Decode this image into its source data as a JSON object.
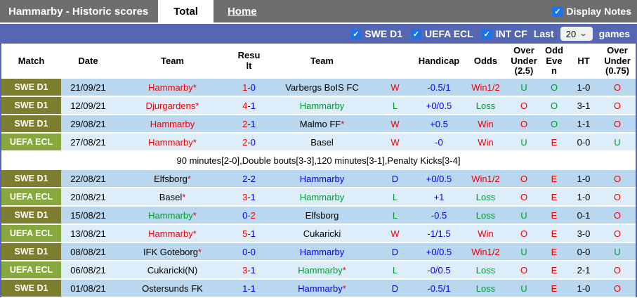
{
  "header": {
    "title": "Hammarby - Historic scores",
    "tabs": [
      {
        "label": "Total",
        "active": true
      },
      {
        "label": "Home",
        "active": false
      }
    ],
    "display_notes_label": "Display Notes",
    "display_notes_checked": true
  },
  "filter_bar": {
    "leagues": [
      {
        "label": "SWE D1",
        "checked": true
      },
      {
        "label": "UEFA ECL",
        "checked": true
      },
      {
        "label": "INT CF",
        "checked": true
      }
    ],
    "last_label": "Last",
    "last_value": "20",
    "games_label": "games"
  },
  "colors": {
    "theme": {
      "topbar-bg": "#6e6e6e",
      "bar-blue": "#5567b2",
      "row-dark": "#b9d7ee",
      "row-light": "#ddeefa",
      "checkbox-blue": "#1a73e8",
      "note-bg": "#ffffff"
    },
    "text": {
      "red": "#ee0000",
      "green": "#009933",
      "blue": "#0000ee",
      "black": "#000000",
      "star": "#ee0000"
    }
  },
  "league_colors": {
    "SWE D1": "#7d7d2f",
    "UEFA ECL": "#87a83e"
  },
  "check_icon": "✓",
  "chevron_icon": "⌄",
  "table": {
    "columns": [
      "Match",
      "Date",
      "Team",
      "Result",
      "Team",
      "",
      "Handicap",
      "Odds",
      "Over Under (2.5)",
      "Odd Even",
      "HT",
      "Over Under (0.75)"
    ],
    "rows": [
      {
        "league": "SWE D1",
        "date": "21/09/21",
        "home": "Hammarby",
        "home_star": true,
        "home_color": "red",
        "score": {
          "home": "1",
          "away": "0",
          "home_color": "red",
          "away_color": "blue"
        },
        "away": "Varbergs BoIS FC",
        "away_star": false,
        "away_color": "black",
        "result": "W",
        "result_color": "red",
        "handicap": "-0.5/1",
        "odds": "Win1/2",
        "odds_color": "red",
        "over_under_2_5": "U",
        "over_under_2_5_color": "green",
        "odd_even": "O",
        "odd_even_color": "green",
        "ht": "1-0",
        "over_under_0_75": "O",
        "over_under_0_75_color": "red"
      },
      {
        "league": "SWE D1",
        "date": "12/09/21",
        "home": "Djurgardens",
        "home_star": true,
        "home_color": "red",
        "score": {
          "home": "4",
          "away": "1",
          "home_color": "red",
          "away_color": "blue"
        },
        "away": "Hammarby",
        "away_star": false,
        "away_color": "green",
        "result": "L",
        "result_color": "green",
        "handicap": "+0/0.5",
        "odds": "Loss",
        "odds_color": "green",
        "over_under_2_5": "O",
        "over_under_2_5_color": "red",
        "odd_even": "O",
        "odd_even_color": "green",
        "ht": "3-1",
        "over_under_0_75": "O",
        "over_under_0_75_color": "red"
      },
      {
        "league": "SWE D1",
        "date": "29/08/21",
        "home": "Hammarby",
        "home_star": false,
        "home_color": "red",
        "score": {
          "home": "2",
          "away": "1",
          "home_color": "red",
          "away_color": "blue"
        },
        "away": "Malmo FF",
        "away_star": true,
        "away_color": "black",
        "result": "W",
        "result_color": "red",
        "handicap": "+0.5",
        "odds": "Win",
        "odds_color": "red",
        "over_under_2_5": "O",
        "over_under_2_5_color": "red",
        "odd_even": "O",
        "odd_even_color": "green",
        "ht": "1-1",
        "over_under_0_75": "O",
        "over_under_0_75_color": "red"
      },
      {
        "league": "UEFA ECL",
        "date": "27/08/21",
        "home": "Hammarby",
        "home_star": true,
        "home_color": "red",
        "score": {
          "home": "2",
          "away": "0",
          "home_color": "red",
          "away_color": "blue"
        },
        "away": "Basel",
        "away_star": false,
        "away_color": "black",
        "result": "W",
        "result_color": "red",
        "handicap": "-0",
        "odds": "Win",
        "odds_color": "red",
        "over_under_2_5": "U",
        "over_under_2_5_color": "green",
        "odd_even": "E",
        "odd_even_color": "red",
        "ht": "0-0",
        "over_under_0_75": "U",
        "over_under_0_75_color": "green"
      },
      {
        "type": "note",
        "text": "90 minutes[2-0],Double bouts[3-3],120 minutes[3-1],Penalty Kicks[3-4]"
      },
      {
        "league": "SWE D1",
        "date": "22/08/21",
        "home": "Elfsborg",
        "home_star": true,
        "home_color": "black",
        "score": {
          "home": "2",
          "away": "2",
          "home_color": "blue",
          "away_color": "blue"
        },
        "away": "Hammarby",
        "away_star": false,
        "away_color": "blue",
        "result": "D",
        "result_color": "blue",
        "handicap": "+0/0.5",
        "odds": "Win1/2",
        "odds_color": "red",
        "over_under_2_5": "O",
        "over_under_2_5_color": "red",
        "odd_even": "E",
        "odd_even_color": "red",
        "ht": "1-0",
        "over_under_0_75": "O",
        "over_under_0_75_color": "red"
      },
      {
        "league": "UEFA ECL",
        "date": "20/08/21",
        "home": "Basel",
        "home_star": true,
        "home_color": "black",
        "score": {
          "home": "3",
          "away": "1",
          "home_color": "red",
          "away_color": "blue"
        },
        "away": "Hammarby",
        "away_star": false,
        "away_color": "green",
        "result": "L",
        "result_color": "green",
        "handicap": "+1",
        "odds": "Loss",
        "odds_color": "green",
        "over_under_2_5": "O",
        "over_under_2_5_color": "red",
        "odd_even": "E",
        "odd_even_color": "red",
        "ht": "1-0",
        "over_under_0_75": "O",
        "over_under_0_75_color": "red"
      },
      {
        "league": "SWE D1",
        "date": "15/08/21",
        "home": "Hammarby",
        "home_star": true,
        "home_color": "green",
        "score": {
          "home": "0",
          "away": "2",
          "home_color": "blue",
          "away_color": "red"
        },
        "away": "Elfsborg",
        "away_star": false,
        "away_color": "black",
        "result": "L",
        "result_color": "green",
        "handicap": "-0.5",
        "odds": "Loss",
        "odds_color": "green",
        "over_under_2_5": "U",
        "over_under_2_5_color": "green",
        "odd_even": "E",
        "odd_even_color": "red",
        "ht": "0-1",
        "over_under_0_75": "O",
        "over_under_0_75_color": "red"
      },
      {
        "league": "UEFA ECL",
        "date": "13/08/21",
        "home": "Hammarby",
        "home_star": true,
        "home_color": "red",
        "score": {
          "home": "5",
          "away": "1",
          "home_color": "red",
          "away_color": "blue"
        },
        "away": "Cukaricki",
        "away_star": false,
        "away_color": "black",
        "result": "W",
        "result_color": "red",
        "handicap": "-1/1.5",
        "odds": "Win",
        "odds_color": "red",
        "over_under_2_5": "O",
        "over_under_2_5_color": "red",
        "odd_even": "E",
        "odd_even_color": "red",
        "ht": "3-0",
        "over_under_0_75": "O",
        "over_under_0_75_color": "red"
      },
      {
        "league": "SWE D1",
        "date": "08/08/21",
        "home": "IFK Goteborg",
        "home_star": true,
        "home_color": "black",
        "score": {
          "home": "0",
          "away": "0",
          "home_color": "blue",
          "away_color": "blue"
        },
        "away": "Hammarby",
        "away_star": false,
        "away_color": "blue",
        "result": "D",
        "result_color": "blue",
        "handicap": "+0/0.5",
        "odds": "Win1/2",
        "odds_color": "red",
        "over_under_2_5": "U",
        "over_under_2_5_color": "green",
        "odd_even": "E",
        "odd_even_color": "red",
        "ht": "0-0",
        "over_under_0_75": "U",
        "over_under_0_75_color": "green"
      },
      {
        "league": "UEFA ECL",
        "date": "06/08/21",
        "home": "Cukaricki(N)",
        "home_star": false,
        "home_color": "black",
        "score": {
          "home": "3",
          "away": "1",
          "home_color": "red",
          "away_color": "blue"
        },
        "away": "Hammarby",
        "away_star": true,
        "away_color": "green",
        "result": "L",
        "result_color": "green",
        "handicap": "-0/0.5",
        "odds": "Loss",
        "odds_color": "green",
        "over_under_2_5": "O",
        "over_under_2_5_color": "red",
        "odd_even": "E",
        "odd_even_color": "red",
        "ht": "2-1",
        "over_under_0_75": "O",
        "over_under_0_75_color": "red"
      },
      {
        "league": "SWE D1",
        "date": "01/08/21",
        "home": "Ostersunds FK",
        "home_star": false,
        "home_color": "black",
        "score": {
          "home": "1",
          "away": "1",
          "home_color": "blue",
          "away_color": "blue"
        },
        "away": "Hammarby",
        "away_star": true,
        "away_color": "blue",
        "result": "D",
        "result_color": "blue",
        "handicap": "-0.5/1",
        "odds": "Loss",
        "odds_color": "green",
        "over_under_2_5": "U",
        "over_under_2_5_color": "green",
        "odd_even": "E",
        "odd_even_color": "red",
        "ht": "1-0",
        "over_under_0_75": "O",
        "over_under_0_75_color": "red"
      }
    ]
  }
}
